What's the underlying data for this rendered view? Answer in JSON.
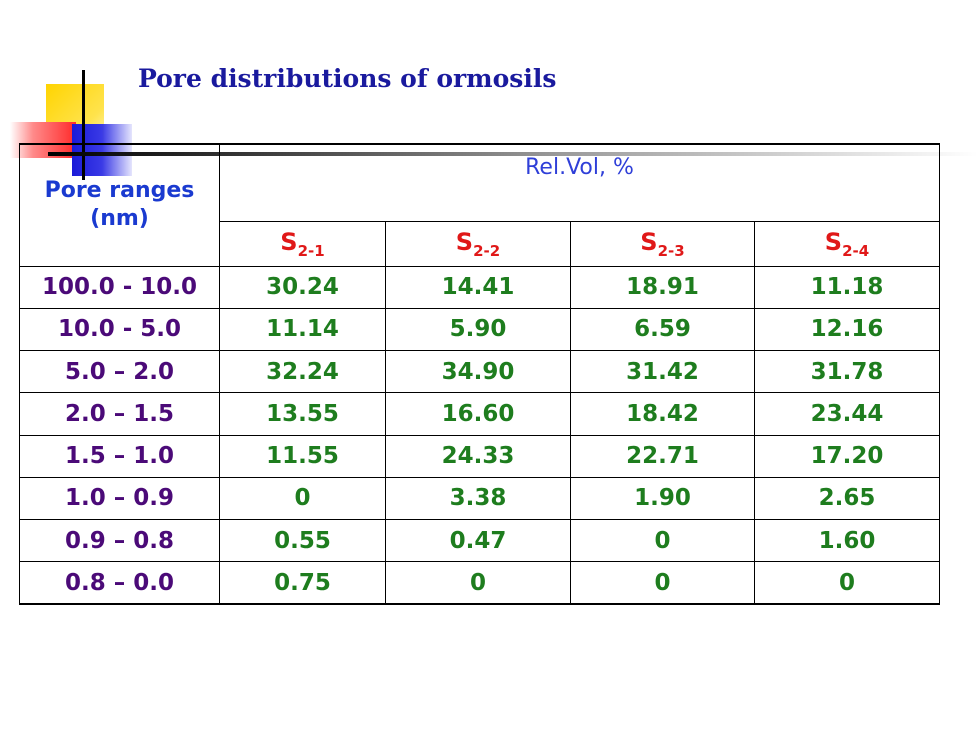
{
  "title": "Pore distributions of ormosils",
  "table": {
    "range_header": "Pore ranges (nm)",
    "group_header": "Rel.Vol, %",
    "samples": [
      {
        "base": "S",
        "sub": "2-1"
      },
      {
        "base": "S",
        "sub": "2-2"
      },
      {
        "base": "S",
        "sub": "2-3"
      },
      {
        "base": "S",
        "sub": "2-4"
      }
    ],
    "rows": [
      {
        "range": "100.0 - 10.0",
        "values": [
          "30.24",
          "14.41",
          "18.91",
          "11.18"
        ]
      },
      {
        "range": "10.0 - 5.0",
        "values": [
          "11.14",
          "5.90",
          "6.59",
          "12.16"
        ]
      },
      {
        "range": "5.0 – 2.0",
        "values": [
          "32.24",
          "34.90",
          "31.42",
          "31.78"
        ]
      },
      {
        "range": "2.0 – 1.5",
        "values": [
          "13.55",
          "16.60",
          "18.42",
          "23.44"
        ]
      },
      {
        "range": "1.5 – 1.0",
        "values": [
          "11.55",
          "24.33",
          "22.71",
          "17.20"
        ]
      },
      {
        "range": "1.0 – 0.9",
        "values": [
          "0",
          "3.38",
          "1.90",
          "2.65"
        ]
      },
      {
        "range": "0.9 – 0.8",
        "values": [
          "0.55",
          "0.47",
          "0",
          "1.60"
        ]
      },
      {
        "range": "0.8 – 0.0",
        "values": [
          "0.75",
          "0",
          "0",
          "0"
        ]
      }
    ]
  },
  "colors": {
    "title": "#1a1a9e",
    "range_header": "#1a3ad0",
    "sample_header": "#e01818",
    "range_text": "#4b0a78",
    "value_text": "#1e7d1e"
  }
}
